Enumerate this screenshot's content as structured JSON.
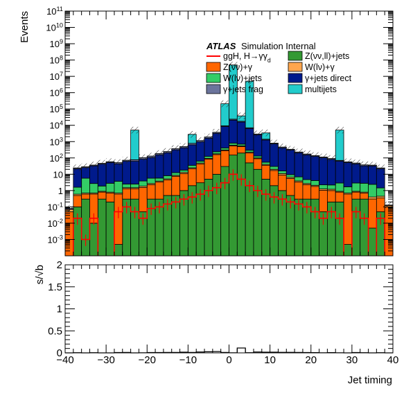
{
  "chart_data": [
    {
      "type": "stacked-histogram",
      "ylabel": "Events",
      "xlabel": "",
      "xlim": [
        -40,
        40
      ],
      "ylim_log": [
        0.0001,
        100000000000
      ],
      "log_y": true,
      "grid": false,
      "legend_placement": "top-right",
      "atlas_label": "ATLAS",
      "atlas_suffix": "Simulation Internal",
      "ytick_labels": [
        "10^{-3}",
        "10^{-2}",
        "10^{-1}",
        "1",
        "10",
        "10^{2}",
        "10^{3}",
        "10^{4}",
        "10^{5}",
        "10^{6}",
        "10^{7}",
        "10^{8}",
        "10^{9}",
        "10^{10}",
        "10^{11}"
      ],
      "bin_edges": [
        -40,
        -38,
        -36,
        -34,
        -32,
        -30,
        -28,
        -26,
        -24,
        -22,
        -20,
        -18,
        -16,
        -14,
        -12,
        -10,
        -8,
        -6,
        -4,
        -2,
        0,
        2,
        4,
        6,
        8,
        10,
        12,
        14,
        16,
        18,
        20,
        22,
        24,
        26,
        28,
        30,
        32,
        34,
        36,
        38,
        40
      ],
      "stack_order": [
        "Z(νν,ll)+jets",
        "Z(νν)+γ",
        "W(lν)+γ",
        "W(lν)+jets",
        "γ+jets direct",
        "γ+jets frag",
        "multijets"
      ],
      "series": [
        {
          "name": "Z(νν,ll)+jets",
          "color": "#339933",
          "values": [
            0,
            0.1,
            0.3,
            0.01,
            0.3,
            0.2,
            0.0005,
            0.3,
            0.3,
            0.05,
            0.3,
            0.3,
            0.5,
            0.5,
            1,
            2,
            3,
            5,
            10,
            30,
            150,
            200,
            50,
            20,
            5,
            2,
            1,
            0.5,
            0.3,
            0.3,
            0.3,
            0.05,
            0.2,
            0.2,
            0.0005,
            0.3,
            0.3,
            0.005,
            0.05,
            0
          ]
        },
        {
          "name": "Z(νν)+γ",
          "color": "#ff6600",
          "values": [
            0.05,
            0.4,
            0.3,
            0.6,
            0.5,
            0.5,
            0.6,
            1,
            1,
            1.5,
            2,
            3,
            4,
            7,
            10,
            20,
            40,
            80,
            150,
            250,
            400,
            300,
            150,
            70,
            30,
            15,
            8,
            5,
            3,
            2,
            1.5,
            1,
            0.8,
            0.6,
            0.6,
            0.5,
            0.4,
            0.3,
            0.3,
            0.1
          ]
        },
        {
          "name": "W(lν)+γ",
          "color": "#ffa64d",
          "values": [
            0.02,
            0.1,
            0.1,
            0.1,
            0.1,
            0.1,
            0.1,
            0.2,
            0.2,
            0.3,
            0.4,
            0.5,
            0.7,
            1,
            2,
            3,
            6,
            10,
            20,
            30,
            60,
            50,
            25,
            10,
            5,
            3,
            2,
            1,
            0.6,
            0.4,
            0.3,
            0.2,
            0.2,
            0.1,
            0.1,
            0.1,
            0.1,
            0.1,
            0.1,
            0.02
          ]
        },
        {
          "name": "W(lν)+jets",
          "color": "#33cc66",
          "values": [
            0,
            1,
            5,
            2,
            1,
            2,
            3,
            1,
            1,
            2,
            3,
            2,
            3,
            4,
            5,
            10,
            15,
            30,
            60,
            100,
            200,
            150,
            70,
            30,
            15,
            10,
            5,
            3,
            3,
            2,
            2,
            1,
            1,
            2,
            1,
            2,
            2,
            2,
            1,
            0
          ]
        },
        {
          "name": "γ+jets direct",
          "color": "#001a8c",
          "values": [
            0.01,
            20,
            20,
            30,
            40,
            50,
            40,
            60,
            60,
            80,
            100,
            150,
            200,
            300,
            400,
            600,
            900,
            1500,
            3000,
            8000,
            20000,
            15000,
            6000,
            2500,
            1200,
            700,
            400,
            300,
            200,
            150,
            120,
            100,
            80,
            60,
            50,
            40,
            30,
            30,
            20,
            0.01
          ]
        },
        {
          "name": "γ+jets frag",
          "color": "#6b749c",
          "values": [
            0.001,
            3,
            3,
            4,
            5,
            6,
            8,
            10,
            15,
            20,
            25,
            30,
            40,
            60,
            80,
            150,
            200,
            300,
            500,
            1000,
            3000,
            2000,
            800,
            300,
            150,
            80,
            50,
            30,
            25,
            20,
            15,
            12,
            10,
            8,
            6,
            6,
            5,
            4,
            3,
            0.001
          ]
        },
        {
          "name": "multijets",
          "color": "#22cccc",
          "values": [
            0,
            0,
            0,
            0,
            0,
            0,
            0,
            0,
            5000,
            0,
            0,
            0,
            0,
            0,
            0,
            2000,
            0,
            0,
            0,
            200000,
            50000000,
            20000,
            5000000,
            0,
            2000,
            0,
            0,
            0,
            0,
            0,
            0,
            0,
            0,
            5000,
            0,
            0,
            0,
            0,
            0,
            0
          ]
        }
      ],
      "signal": {
        "name": "ggH, H→γγ_{d}",
        "color": "#ff0000",
        "values": [
          0.0001,
          0.02,
          0.001,
          0.02,
          0.0001,
          0.0001,
          0.05,
          0.1,
          0.05,
          0.02,
          0.08,
          0.1,
          0.15,
          0.2,
          0.3,
          0.4,
          0.6,
          1,
          1.5,
          3,
          10,
          5,
          2,
          1,
          0.6,
          0.4,
          0.3,
          0.2,
          0.15,
          0.1,
          0.05,
          0.02,
          0.05,
          0.02,
          0.0001,
          0.05,
          0.02,
          0.0001,
          0.02,
          0.0001
        ]
      },
      "legend": [
        {
          "name": "ggH, H→γγ_{d}",
          "style": "line",
          "color": "#ff0000"
        },
        {
          "name": "Z(νν,ll)+jets",
          "style": "box",
          "color": "#339933"
        },
        {
          "name": "Z(νν)+γ",
          "style": "box",
          "color": "#ff6600"
        },
        {
          "name": "W(lν)+γ",
          "style": "box",
          "color": "#ffa64d"
        },
        {
          "name": "W(lν)+jets",
          "style": "box",
          "color": "#33cc66"
        },
        {
          "name": "γ+jets direct",
          "style": "box",
          "color": "#001a8c"
        },
        {
          "name": "γ+jets frag",
          "style": "box",
          "color": "#6b749c"
        },
        {
          "name": "multijets",
          "style": "box",
          "color": "#22cccc"
        }
      ]
    },
    {
      "type": "histogram",
      "ylabel": "s/√b",
      "xlabel": "Jet timing",
      "xlim": [
        -40,
        40
      ],
      "ylim": [
        0,
        2
      ],
      "ytick_labels": [
        "0",
        "0.5",
        "1",
        "1.5",
        "2"
      ],
      "xtick_labels": [
        "−40",
        "−30",
        "−20",
        "−10",
        "0",
        "10",
        "20",
        "30",
        "40"
      ],
      "bin_edges": [
        -40,
        -38,
        -36,
        -34,
        -32,
        -30,
        -28,
        -26,
        -24,
        -22,
        -20,
        -18,
        -16,
        -14,
        -12,
        -10,
        -8,
        -6,
        -4,
        -2,
        0,
        2,
        4,
        6,
        8,
        10,
        12,
        14,
        16,
        18,
        20,
        22,
        24,
        26,
        28,
        30,
        32,
        34,
        36,
        38,
        40
      ],
      "values": [
        0,
        0.004,
        0,
        0.004,
        0,
        0,
        0.008,
        0.01,
        0,
        0.002,
        0.008,
        0.008,
        0.01,
        0.01,
        0.015,
        0.01,
        0.02,
        0.025,
        0.03,
        0.01,
        0.002,
        0.11,
        0.003,
        0.02,
        0.015,
        0.015,
        0.012,
        0.012,
        0.01,
        0.008,
        0.005,
        0.002,
        0.006,
        0.002,
        0,
        0.008,
        0.004,
        0,
        0.004,
        0
      ]
    }
  ]
}
